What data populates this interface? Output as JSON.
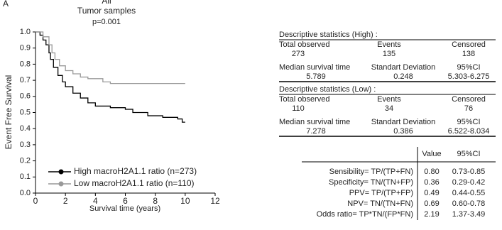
{
  "panel_label": "A",
  "chart_data": {
    "type": "step",
    "title": "All",
    "subtitle": "Tumor samples",
    "annotation": "p=0.001",
    "xlabel": "Survival time (years)",
    "ylabel": "Event Free Survival",
    "xlim": [
      0,
      12
    ],
    "xticks": [
      0,
      2,
      4,
      6,
      8,
      10,
      12
    ],
    "ylim": [
      0,
      1
    ],
    "yticks": [
      {
        "value": 0,
        "label": "0.0"
      },
      0.1,
      0.2,
      0.3,
      0.4,
      0.5,
      0.6,
      0.7,
      0.8,
      0.9,
      {
        "value": 1,
        "label": "1.0"
      }
    ],
    "legend": "bottom-left",
    "series": [
      {
        "name": "High macroH2A1.1 ratio (n=273)",
        "color": "#000000",
        "x": [
          0,
          0.3,
          0.5,
          0.7,
          0.9,
          1.0,
          1.2,
          1.5,
          1.8,
          2.0,
          2.5,
          3.0,
          3.5,
          4.0,
          5.0,
          6.0,
          6.5,
          7.5,
          8.5,
          9.5,
          9.8,
          10
        ],
        "values": [
          1.0,
          0.98,
          0.95,
          0.92,
          0.87,
          0.83,
          0.78,
          0.73,
          0.69,
          0.66,
          0.62,
          0.59,
          0.56,
          0.54,
          0.53,
          0.52,
          0.5,
          0.48,
          0.47,
          0.46,
          0.44,
          0.44
        ]
      },
      {
        "name": "Low  macroH2A1.1 ratio (n=110)",
        "color": "#999999",
        "x": [
          0,
          0.5,
          0.9,
          1.1,
          1.3,
          1.6,
          2.0,
          2.5,
          3.0,
          3.5,
          4.5,
          5.0,
          10
        ],
        "values": [
          1.0,
          0.97,
          0.92,
          0.87,
          0.83,
          0.79,
          0.76,
          0.74,
          0.72,
          0.71,
          0.69,
          0.68,
          0.68
        ]
      }
    ]
  },
  "stats": [
    {
      "title": "Descriptive statistics (High) :",
      "rows": [
        [
          "Total observed",
          "Events",
          "Censored"
        ],
        [
          "273",
          "135",
          "138"
        ],
        [
          "Median survival time",
          "Standart Deviation",
          "95%CI"
        ],
        [
          "5.789",
          "0.248",
          "5.303-6.275"
        ]
      ]
    },
    {
      "title": "Descriptive statistics (Low) :",
      "rows": [
        [
          "Total observed",
          "Events",
          "Censored"
        ],
        [
          "110",
          "34",
          "76"
        ],
        [
          "Median survival time",
          "Standart Deviation",
          "95%CI"
        ],
        [
          "7.278",
          "0.386",
          "6.522-8.034"
        ]
      ]
    }
  ],
  "table": {
    "header": [
      "Value",
      "95%CI"
    ],
    "rows": [
      [
        "Sensibility= TP/(TP+FN)",
        "0.80",
        "0.73-0.85"
      ],
      [
        "Specificity= TN/(TN+FP)",
        "0.36",
        "0.29-0.42"
      ],
      [
        "PPV= TP/(TP+FP)",
        "0.49",
        "0.44-0.55"
      ],
      [
        "NPV= TN/(TN+FN)",
        "0.69",
        "0.60-0.78"
      ],
      [
        "Odds ratio= TP*TN/(FP*FN)",
        "2.19",
        "1.37-3.49"
      ]
    ]
  }
}
